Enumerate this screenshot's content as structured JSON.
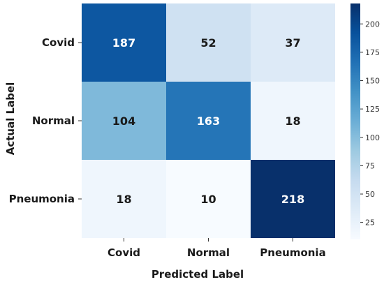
{
  "chart_data": {
    "type": "heatmap",
    "title": "",
    "xlabel": "Predicted Label",
    "ylabel": "Actual Label",
    "x_categories": [
      "Covid",
      "Normal",
      "Pneumonia"
    ],
    "y_categories": [
      "Covid",
      "Normal",
      "Pneumonia"
    ],
    "values": [
      [
        187,
        52,
        37
      ],
      [
        104,
        163,
        18
      ],
      [
        18,
        10,
        218
      ]
    ],
    "colormap": "Blues",
    "colorbar": {
      "range": [
        10,
        218
      ],
      "ticks": [
        25,
        50,
        75,
        100,
        125,
        150,
        175,
        200
      ]
    }
  }
}
